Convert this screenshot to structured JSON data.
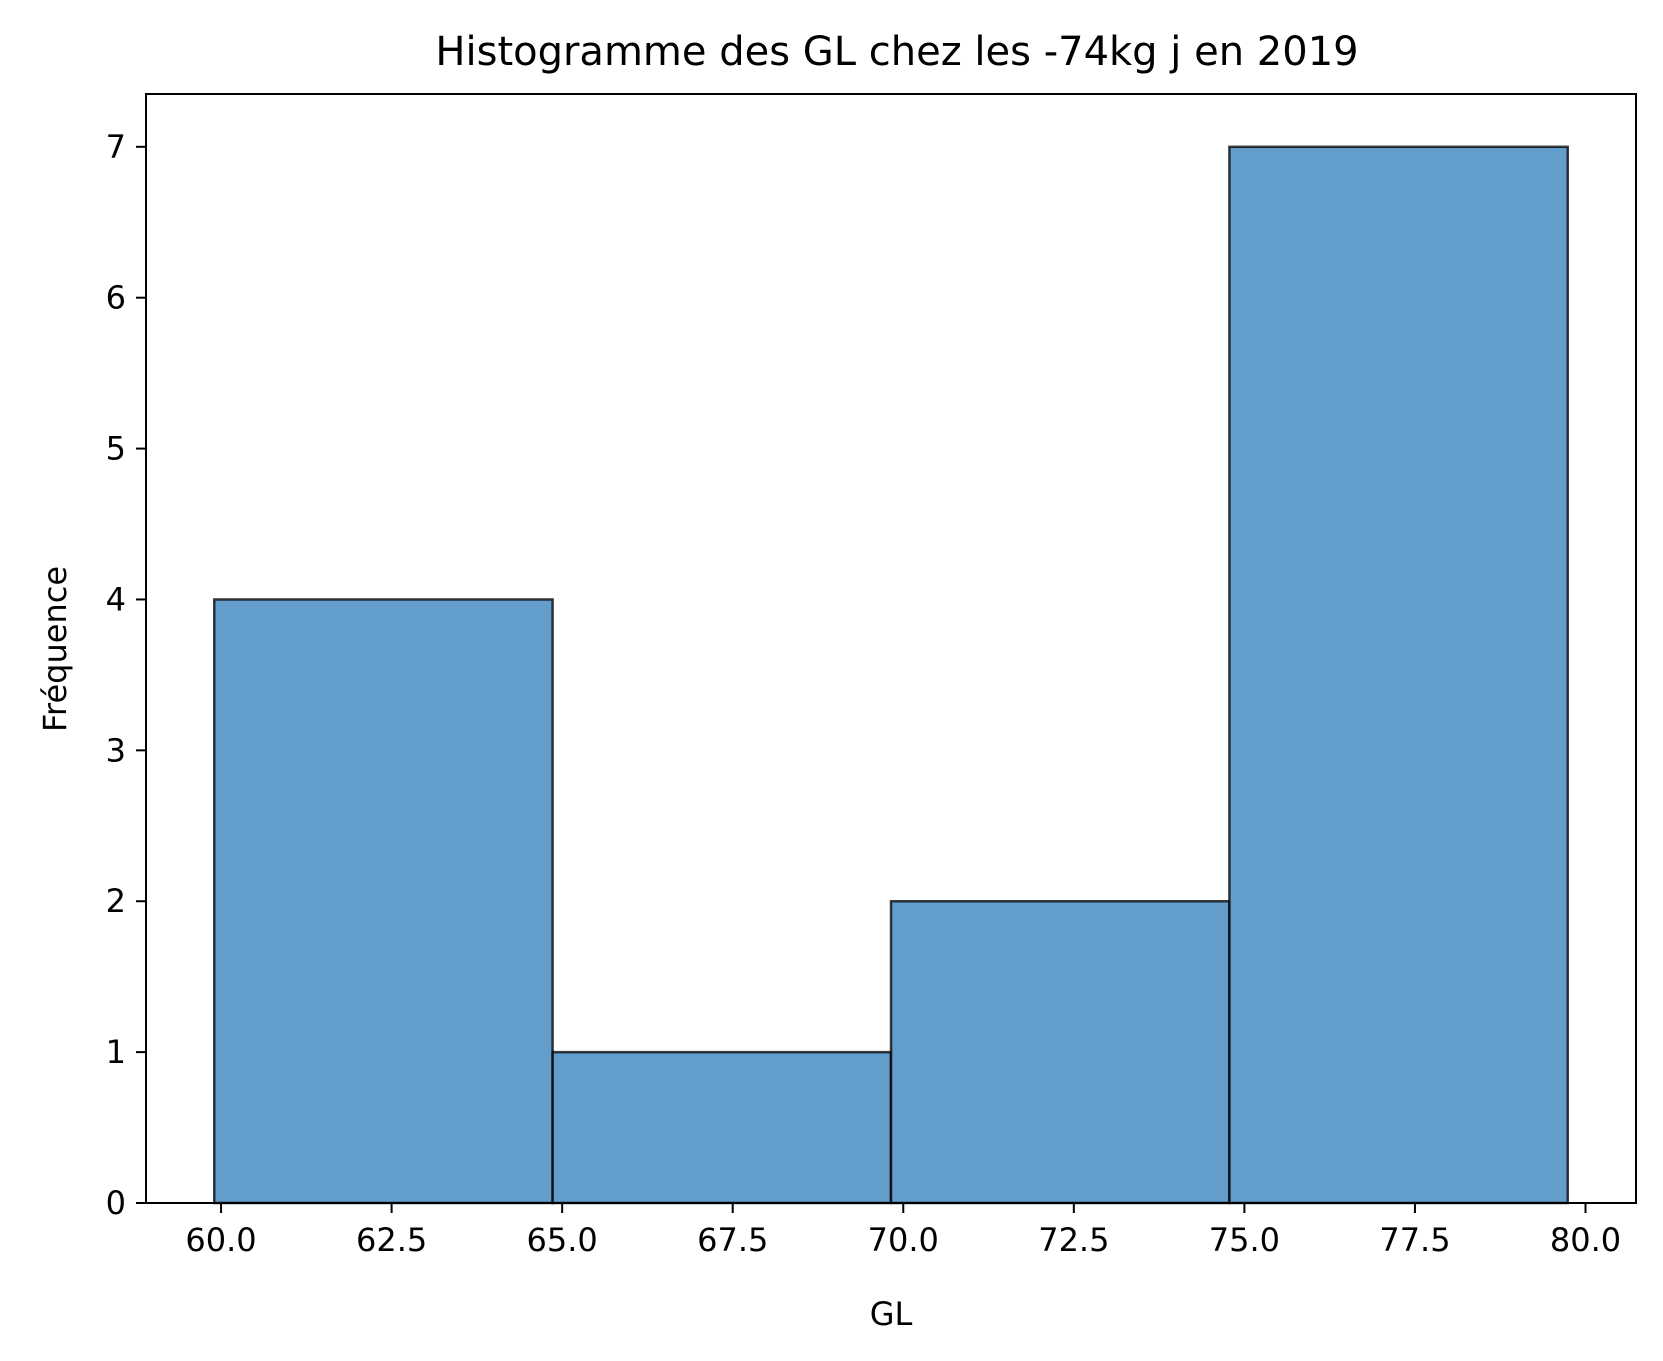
{
  "chart_data": {
    "type": "bar",
    "title": "Histogramme des GL chez les -74kg j en 2019",
    "xlabel": "GL",
    "ylabel": "Fréquence",
    "bins": [
      {
        "x0": 59.9,
        "x1": 64.86,
        "count": 4
      },
      {
        "x0": 64.86,
        "x1": 69.82,
        "count": 1
      },
      {
        "x0": 69.82,
        "x1": 74.78,
        "count": 2
      },
      {
        "x0": 74.78,
        "x1": 79.74,
        "count": 7
      }
    ],
    "xlim": [
      58.9,
      80.74
    ],
    "ylim": [
      0,
      7.35
    ],
    "xticks": [
      "60.0",
      "62.5",
      "65.0",
      "67.5",
      "70.0",
      "72.5",
      "75.0",
      "77.5",
      "80.0"
    ],
    "yticks": [
      "0",
      "1",
      "2",
      "3",
      "4",
      "5",
      "6",
      "7"
    ],
    "bar_color": "#4C8FC4",
    "bar_edge_color": "#000000",
    "grid": false,
    "legend": "none"
  }
}
